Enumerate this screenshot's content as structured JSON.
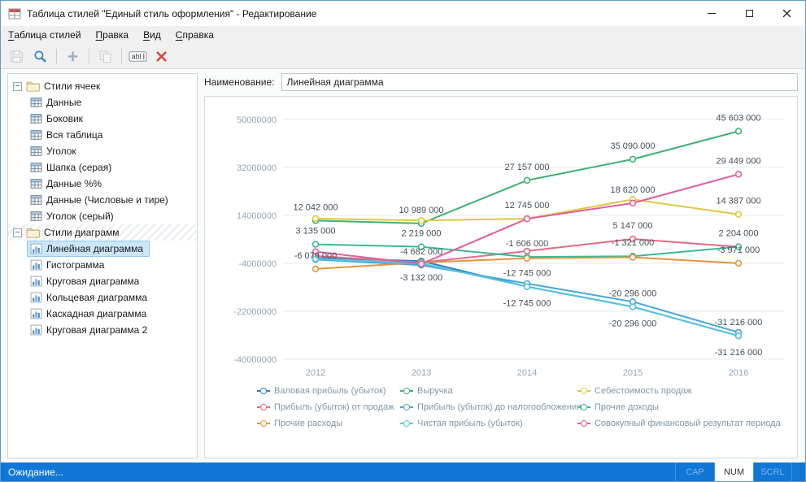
{
  "window": {
    "title": "Таблица стилей \"Единый стиль оформления\" - Редактирование"
  },
  "menu": {
    "items": [
      "Таблица стилей",
      "Правка",
      "Вид",
      "Справка"
    ]
  },
  "toolbar": {
    "buttons": [
      {
        "icon": "save-icon",
        "disabled": true
      },
      {
        "icon": "zoom-icon",
        "disabled": false
      },
      {
        "separator": true
      },
      {
        "icon": "add-icon",
        "disabled": false
      },
      {
        "separator": true
      },
      {
        "icon": "copy-icon",
        "disabled": true
      },
      {
        "separator": true
      },
      {
        "icon": "rename-icon",
        "disabled": false
      },
      {
        "icon": "delete-icon",
        "disabled": false
      }
    ]
  },
  "tree": {
    "groups": [
      {
        "label": "Стили ячеек",
        "expanded": true,
        "item_icon": "cell-style-icon",
        "hatched": false,
        "items": [
          {
            "label": "Данные"
          },
          {
            "label": "Боковик"
          },
          {
            "label": "Вся таблица"
          },
          {
            "label": "Уголок"
          },
          {
            "label": "Шапка (серая)"
          },
          {
            "label": "Данные %%"
          },
          {
            "label": "Данные (Числовые и тире)"
          },
          {
            "label": "Уголок (серый)"
          }
        ]
      },
      {
        "label": "Стили диаграмм",
        "expanded": true,
        "item_icon": "chart-style-icon",
        "hatched": true,
        "items": [
          {
            "label": "Линейная диаграмма",
            "selected": true
          },
          {
            "label": "Гистограмма"
          },
          {
            "label": "Круговая диаграмма"
          },
          {
            "label": "Кольцевая диаграмма"
          },
          {
            "label": "Каскадная диаграмма"
          },
          {
            "label": "Круговая диаграмма 2"
          }
        ]
      }
    ]
  },
  "editor": {
    "name_label": "Наименование:",
    "name_value": "Линейная диаграмма"
  },
  "chart_data": {
    "type": "line",
    "categories": [
      "2012",
      "2013",
      "2014",
      "2015",
      "2016"
    ],
    "ylim": [
      -40000000,
      50000000
    ],
    "yticks": [
      50000000,
      32000000,
      14000000,
      -4000000,
      -22000000,
      -40000000
    ],
    "grid": true,
    "legend_position": "bottom",
    "series": [
      {
        "name": "Валовая прибыль (убыток)",
        "color": "#2f80c3",
        "values": [
          -2000000,
          -3132000,
          -12745000,
          -20296000,
          -31216000
        ]
      },
      {
        "name": "Выручка",
        "color": "#3eb173",
        "values": [
          12042000,
          10989000,
          27157000,
          35090000,
          45603000
        ]
      },
      {
        "name": "Себестоимость продаж",
        "color": "#ddc944",
        "values": [
          12800000,
          12100000,
          12745000,
          20000000,
          14387000
        ]
      },
      {
        "name": "Прибыль (убыток) от продаж",
        "color": "#e16b84",
        "values": [
          -1200000,
          -3700000,
          600000,
          5147000,
          2204000
        ]
      },
      {
        "name": "Прибыль (убыток) до налогообложения",
        "color": "#49a6da",
        "values": [
          -2600000,
          -4682000,
          -11600000,
          -18400000,
          -29900000
        ]
      },
      {
        "name": "Прочие доходы",
        "color": "#3bb897",
        "values": [
          3135000,
          2219000,
          -1606000,
          -1321000,
          2204000
        ]
      },
      {
        "name": "Прочие расходы",
        "color": "#e0953e",
        "values": [
          -6079000,
          -3700000,
          -2100000,
          -1700000,
          -3971000
        ]
      },
      {
        "name": "Чистая прибыль (убыток)",
        "color": "#57c4de",
        "values": [
          -2300000,
          -4000000,
          -12745000,
          -20296000,
          -31216000
        ]
      },
      {
        "name": "Совокупный финансовый результат периода",
        "color": "#dd5f9e",
        "values": [
          400000,
          -4200000,
          12745000,
          18620000,
          29449000
        ]
      }
    ],
    "point_labels": [
      {
        "text": "12 042 000",
        "x": 0,
        "value": 12042000,
        "placement": "above"
      },
      {
        "text": "3 135 000",
        "x": 0,
        "value": 3135000,
        "placement": "above"
      },
      {
        "text": "-6 079 000",
        "x": 0,
        "value": -6079000,
        "placement": "above"
      },
      {
        "text": "10 989 000",
        "x": 1,
        "value": 10989000,
        "placement": "above"
      },
      {
        "text": "2 219 000",
        "x": 1,
        "value": 2219000,
        "placement": "above"
      },
      {
        "text": "-4 682 000",
        "x": 1,
        "value": -4682000,
        "placement": "above"
      },
      {
        "text": "-3 132 000",
        "x": 1,
        "value": -3132000,
        "placement": "below"
      },
      {
        "text": "27 157 000",
        "x": 2,
        "value": 27157000,
        "placement": "above"
      },
      {
        "text": "12 745 000",
        "x": 2,
        "value": 12745000,
        "placement": "above"
      },
      {
        "text": "-1 606 000",
        "x": 2,
        "value": -1606000,
        "placement": "above"
      },
      {
        "text": "-12 745 000",
        "x": 2,
        "value": -12745000,
        "placement": "above"
      },
      {
        "text": "-12 745 000",
        "x": 2,
        "value": -12745000,
        "placement": "below"
      },
      {
        "text": "35 090 000",
        "x": 3,
        "value": 35090000,
        "placement": "above"
      },
      {
        "text": "18 620 000",
        "x": 3,
        "value": 18620000,
        "placement": "above"
      },
      {
        "text": "5 147 000",
        "x": 3,
        "value": 5147000,
        "placement": "above"
      },
      {
        "text": "-1 321 000",
        "x": 3,
        "value": -1321000,
        "placement": "above"
      },
      {
        "text": "-20 296 000",
        "x": 3,
        "value": -20296000,
        "placement": "above"
      },
      {
        "text": "-20 296 000",
        "x": 3,
        "value": -20296000,
        "placement": "below"
      },
      {
        "text": "45 603 000",
        "x": 4,
        "value": 45603000,
        "placement": "above"
      },
      {
        "text": "29 449 000",
        "x": 4,
        "value": 29449000,
        "placement": "above"
      },
      {
        "text": "14 387 000",
        "x": 4,
        "value": 14387000,
        "placement": "above"
      },
      {
        "text": "2 204 000",
        "x": 4,
        "value": 2204000,
        "placement": "above"
      },
      {
        "text": "-3 971 000",
        "x": 4,
        "value": -3971000,
        "placement": "above"
      },
      {
        "text": "-31 216 000",
        "x": 4,
        "value": -31216000,
        "placement": "above"
      },
      {
        "text": "-31 216 000",
        "x": 4,
        "value": -31216000,
        "placement": "below"
      }
    ]
  },
  "statusbar": {
    "text": "Ожидание...",
    "indicators": [
      {
        "label": "CAP",
        "active": false
      },
      {
        "label": "NUM",
        "active": true
      },
      {
        "label": "SCRL",
        "active": false
      }
    ]
  }
}
